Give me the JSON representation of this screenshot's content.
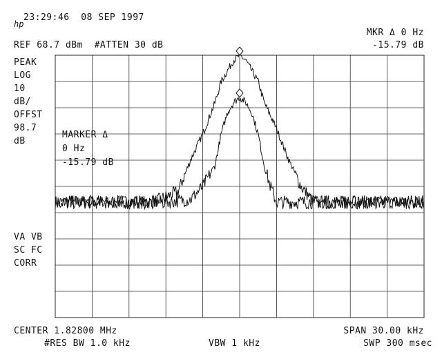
{
  "header": {
    "datetime": "23:29:46  08 SEP 1997",
    "logo": "hp",
    "ref_level": "REF 68.7 dBm  #ATTEN 30 dB",
    "marker_title": "MKR Δ 0 Hz",
    "marker_value": "-15.79 dB"
  },
  "left_panel": {
    "lines": [
      "PEAK",
      "LOG",
      "10",
      "dB/",
      "OFFST",
      "98.7",
      "dB"
    ],
    "bottom_lines": [
      "VA VB",
      "SC FC",
      "CORR"
    ]
  },
  "marker_box": {
    "title": "MARKER Δ",
    "freq": "0 Hz",
    "value": "-15.79 dB"
  },
  "footer": {
    "center": "CENTER 1.82800 MHz",
    "span": "SPAN 30.00 kHz",
    "res_bw": "#RES BW 1.0 kHz",
    "vbw": "VBW 1 kHz",
    "sweep": "SWP 300 msec"
  },
  "chart_data": {
    "type": "line",
    "xlim": [
      -15,
      15
    ],
    "ylim": [
      -100,
      0
    ],
    "grid": true,
    "x_units": "kHz offset from center",
    "y_units": "dB relative to reference",
    "series": [
      {
        "x": [
          -15,
          -10,
          -7,
          -5,
          -4,
          -3,
          -2,
          -1.5,
          -1,
          -0.5,
          0,
          0.5,
          1,
          1.5,
          2,
          3,
          4,
          5,
          6,
          7,
          10,
          15
        ],
        "values": [
          -56,
          -56,
          -56,
          -52,
          -40,
          -30,
          -18,
          -10,
          -6,
          -2,
          0,
          -2,
          -6,
          -10,
          -18,
          -28,
          -40,
          -50,
          -56,
          -56,
          -56,
          -56
        ],
        "marker_at": 0
      },
      {
        "x": [
          -15,
          -10,
          -6,
          -4,
          -3,
          -2,
          -1.5,
          -1,
          -0.5,
          0,
          0.5,
          1,
          1.5,
          2,
          2.5,
          3,
          4,
          6,
          10,
          15
        ],
        "values": [
          -56,
          -56,
          -56,
          -55,
          -50,
          -42,
          -30,
          -22,
          -18,
          -16,
          -18,
          -22,
          -30,
          -42,
          -50,
          -56,
          -56,
          -56,
          -56,
          -56
        ],
        "marker_at": 0
      }
    ]
  }
}
